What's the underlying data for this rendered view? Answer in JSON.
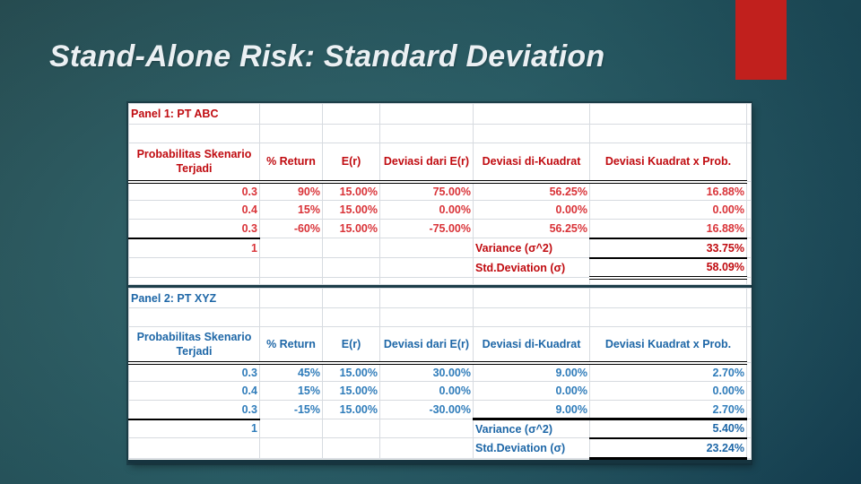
{
  "slide": {
    "title": "Stand-Alone Risk: Standard Deviation",
    "accent_bar_color": "#c1201d"
  },
  "spreadsheet": {
    "columns": [
      "Probabilitas Skenario Terjadi",
      "% Return",
      "E(r)",
      "Deviasi dari E(r)",
      "Deviasi di-Kuadrat",
      "Deviasi Kuadrat x Prob."
    ],
    "panels": [
      {
        "title": "Panel 1: PT ABC",
        "header_color": "#c00b10",
        "value_color": "#d93338",
        "rows": [
          [
            "0.3",
            "90%",
            "15.00%",
            "75.00%",
            "56.25%",
            "16.88%"
          ],
          [
            "0.4",
            "15%",
            "15.00%",
            "0.00%",
            "0.00%",
            "0.00%"
          ],
          [
            "0.3",
            "-60%",
            "15.00%",
            "-75.00%",
            "56.25%",
            "16.88%"
          ]
        ],
        "total_probability": "1",
        "variance_label": "Variance (σ^2)",
        "variance_value": "33.75%",
        "stddev_label": "Std.Deviation (σ)",
        "stddev_value": "58.09%"
      },
      {
        "title": "Panel 2: PT XYZ",
        "header_color": "#1e67a7",
        "value_color": "#2f7cba",
        "rows": [
          [
            "0.3",
            "45%",
            "15.00%",
            "30.00%",
            "9.00%",
            "2.70%"
          ],
          [
            "0.4",
            "15%",
            "15.00%",
            "0.00%",
            "0.00%",
            "0.00%"
          ],
          [
            "0.3",
            "-15%",
            "15.00%",
            "-30.00%",
            "9.00%",
            "2.70%"
          ]
        ],
        "total_probability": "1",
        "variance_label": "Variance (σ^2)",
        "variance_value": "5.40%",
        "stddev_label": "Std.Deviation (σ)",
        "stddev_value": "23.24%"
      }
    ]
  }
}
